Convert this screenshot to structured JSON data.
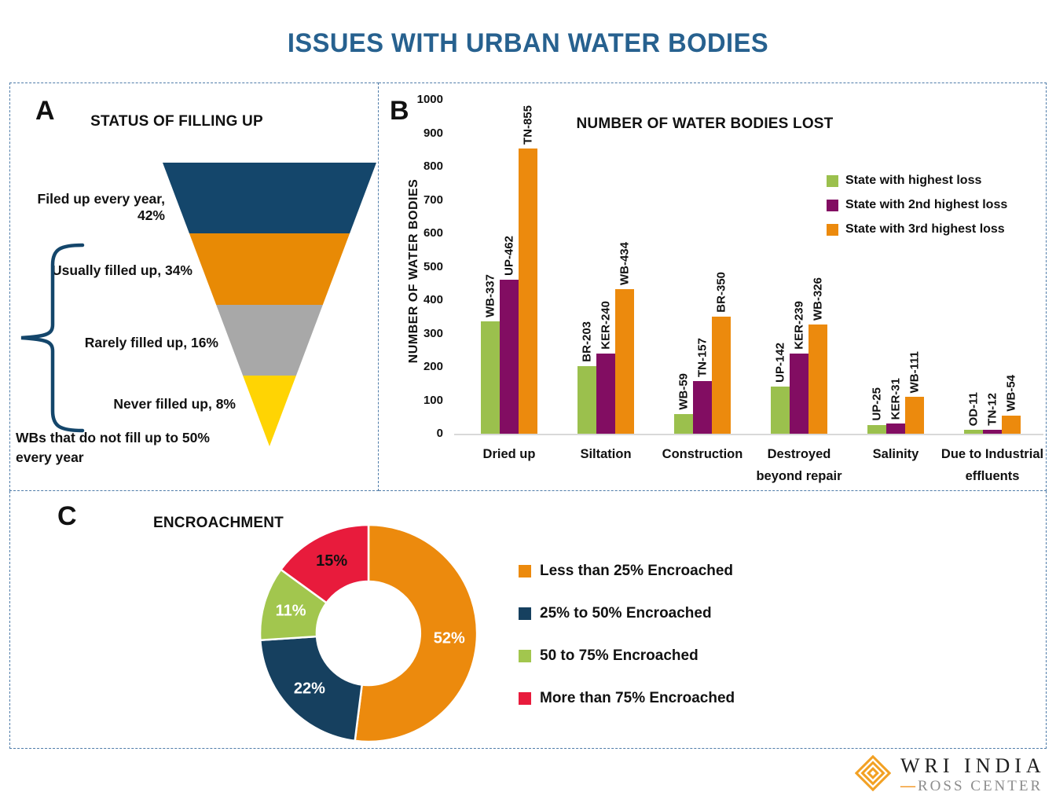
{
  "page": {
    "title": "ISSUES WITH URBAN WATER BODIES",
    "title_color": "#27618f",
    "panel_border_color": "#4f7ca9"
  },
  "panels": {
    "a": {
      "letter": "A",
      "title": "STATUS OF FILLING UP"
    },
    "b": {
      "letter": "B",
      "title": "NUMBER OF WATER BODIES LOST",
      "y_axis_title": "NUMBER OF WATER BODIES"
    },
    "c": {
      "letter": "C",
      "title": "ENCROACHMENT"
    }
  },
  "chart_data": [
    {
      "id": "status-of-filling-up",
      "type": "funnel",
      "title": "STATUS OF FILLING UP",
      "segments": [
        {
          "label": "Filed up every year, 42%",
          "value": 42,
          "color": "#14466b"
        },
        {
          "label": "Usually filled up, 34%",
          "value": 34,
          "color": "#e88a05"
        },
        {
          "label": "Rarely filled up, 16%",
          "value": 16,
          "color": "#a8a8a8"
        },
        {
          "label": "Never filled up, 8%",
          "value": 8,
          "color": "#ffd403"
        }
      ],
      "annotation_lines": [
        "WBs that do not fill up to 50%",
        "every year"
      ]
    },
    {
      "id": "number-of-water-bodies-lost",
      "type": "bar",
      "title": "NUMBER OF WATER BODIES LOST",
      "ylabel": "NUMBER OF WATER BODIES",
      "ylim": [
        0,
        1000
      ],
      "ytick_step": 100,
      "grid": false,
      "legend_position": "right",
      "categories": [
        "Dried up",
        "Siltation",
        "Construction",
        "Destroyed beyond repair",
        "Salinity",
        "Due to Industrial effluents"
      ],
      "category_display_lines": [
        [
          "Dried up"
        ],
        [
          "Siltation"
        ],
        [
          "Construction"
        ],
        [
          "Destroyed",
          "beyond repair"
        ],
        [
          "Salinity"
        ],
        [
          "Due to Industrial",
          "effluents"
        ]
      ],
      "series": [
        {
          "name": "State with highest loss",
          "color": "#9bc04d",
          "values": [
            337,
            203,
            59,
            142,
            25,
            11
          ],
          "bar_labels": [
            "WB-337",
            "BR-203",
            "WB-59",
            "UP-142",
            "UP-25",
            "OD-11"
          ]
        },
        {
          "name": "State with 2nd highest loss",
          "color": "#820d62",
          "values": [
            462,
            240,
            157,
            239,
            31,
            12
          ],
          "bar_labels": [
            "UP-462",
            "KER-240",
            "TN-157",
            "KER-239",
            "KER-31",
            "TN-12"
          ]
        },
        {
          "name": "State with 3rd highest loss",
          "color": "#ec8a0d",
          "values": [
            855,
            434,
            350,
            326,
            111,
            54
          ],
          "bar_labels": [
            "TN-855",
            "WB-434",
            "BR-350",
            "WB-326",
            "WB-111",
            "WB-54"
          ]
        }
      ]
    },
    {
      "id": "encroachment",
      "type": "pie",
      "title": "ENCROACHMENT",
      "donut": true,
      "slices": [
        {
          "label": "Less than 25% Encroached",
          "value": 52,
          "display": "52%",
          "color": "#ec8a0d",
          "label_color": "#ffffff"
        },
        {
          "label": "25% to 50% Encroached",
          "value": 22,
          "display": "22%",
          "color": "#16405f",
          "label_color": "#ffffff"
        },
        {
          "label": "50 to 75% Encroached",
          "value": 11,
          "display": "11%",
          "color": "#a2c64e",
          "label_color": "#ffffff"
        },
        {
          "label": "More than 75% Encroached",
          "value": 15,
          "display": "15%",
          "color": "#e81b3c",
          "label_color": "#111111"
        }
      ]
    }
  ],
  "footer": {
    "org": "WRI INDIA",
    "dash": "—",
    "center": "ROSS CENTER",
    "accent_color": "#f2a124"
  }
}
